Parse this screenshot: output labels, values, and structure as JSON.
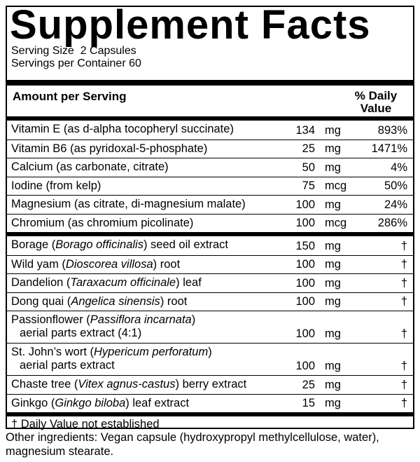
{
  "title": "Supplement Facts",
  "serving_size": "Serving Size  2 Capsules",
  "servings_per_container": "Servings per Container 60",
  "header": {
    "amount": "Amount per Serving",
    "daily_value": "% Daily Value"
  },
  "vitamins": [
    {
      "name": "Vitamin E (as d-alpha tocopheryl succinate)",
      "amount": 134,
      "unit": "mg",
      "daily_value": "893%"
    },
    {
      "name": "Vitamin B6 (as pyridoxal-5-phosphate)",
      "amount": 25,
      "unit": "mg",
      "daily_value": "1471%"
    },
    {
      "name": "Calcium (as carbonate, citrate)",
      "amount": 50,
      "unit": "mg",
      "daily_value": "4%"
    },
    {
      "name": "Iodine (from kelp)",
      "amount": 75,
      "unit": "mcg",
      "daily_value": "50%"
    },
    {
      "name": "Magnesium (as citrate, di-magnesium malate)",
      "amount": 100,
      "unit": "mg",
      "daily_value": "24%"
    },
    {
      "name": "Chromium (as chromium picolinate)",
      "amount": 100,
      "unit": "mcg",
      "daily_value": "286%"
    }
  ],
  "botanicals": [
    {
      "name": "Borage (",
      "latin": "Borago officinalis",
      "rest": ") seed oil extract",
      "amount": 150,
      "unit": "mg",
      "daily_value": "†"
    },
    {
      "name": "Wild yam (",
      "latin": "Dioscorea villosa",
      "rest": ") root",
      "amount": 100,
      "unit": "mg",
      "daily_value": "†"
    },
    {
      "name": "Dandelion (",
      "latin": "Taraxacum officinale",
      "rest": ") leaf",
      "amount": 100,
      "unit": "mg",
      "daily_value": "†"
    },
    {
      "name": "Dong quai (",
      "latin": "Angelica sinensis",
      "rest": ") root",
      "amount": 100,
      "unit": "mg",
      "daily_value": "†"
    },
    {
      "name": "Passionflower (",
      "latin": "Passiflora incarnata",
      "rest": ")",
      "line2": "aerial parts extract (4:1)",
      "amount": 100,
      "unit": "mg",
      "daily_value": "†"
    },
    {
      "name": "St. John’s wort (",
      "latin": "Hypericum perforatum",
      "rest": ")",
      "line2": "aerial parts extract",
      "amount": 100,
      "unit": "mg",
      "daily_value": "†"
    },
    {
      "name": "Chaste tree (",
      "latin": "Vitex agnus-castus",
      "rest": ") berry extract",
      "amount": 25,
      "unit": "mg",
      "daily_value": "†"
    },
    {
      "name": "Ginkgo (",
      "latin": "Ginkgo biloba",
      "rest": ") leaf extract",
      "amount": 15,
      "unit": "mg",
      "daily_value": "†"
    }
  ],
  "footnote": "† Daily Value not established",
  "other_ingredients": "Other ingredients: Vegan capsule (hydroxypropyl methylcellulose, water), magnesium stearate."
}
